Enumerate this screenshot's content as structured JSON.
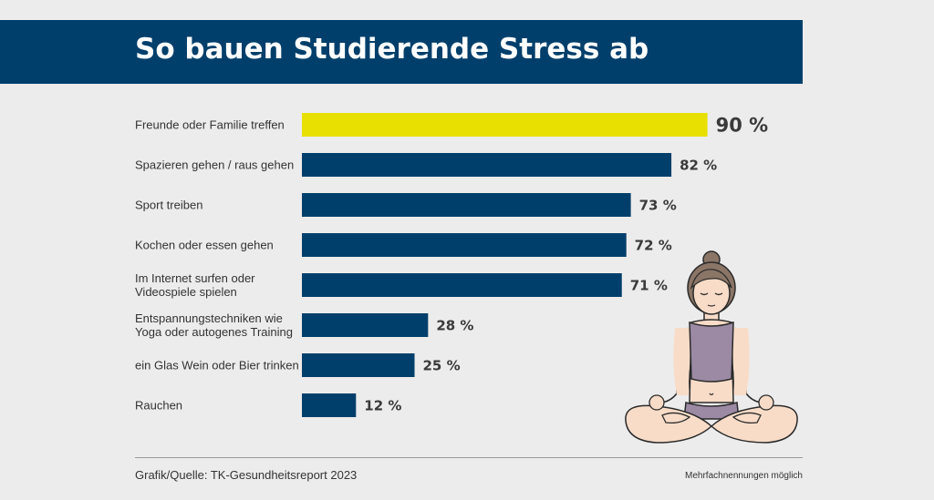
{
  "header": {
    "title": "So bauen Studierende Stress ab"
  },
  "chart_data": {
    "type": "bar",
    "orientation": "horizontal",
    "title": "So bauen Studierende Stress ab",
    "categories": [
      [
        "Freunde oder Familie treffen"
      ],
      [
        "Spazieren gehen / raus gehen"
      ],
      [
        "Sport treiben"
      ],
      [
        "Kochen oder essen gehen"
      ],
      [
        "Im Internet surfen oder",
        "Videospiele spielen"
      ],
      [
        "Entspannungstechniken wie",
        "Yoga oder autogenes Training"
      ],
      [
        "ein Glas Wein oder Bier trinken"
      ],
      [
        "Rauchen"
      ]
    ],
    "values": [
      90,
      82,
      73,
      72,
      71,
      28,
      25,
      12
    ],
    "value_labels": [
      "90 %",
      "82 %",
      "73 %",
      "72 %",
      "71 %",
      "28 %",
      "25 %",
      "12 %"
    ],
    "unit": "%",
    "xlim": [
      0,
      100
    ],
    "highlight_index": 0,
    "colors": {
      "bar": "#003f6b",
      "highlight": "#e8e000"
    }
  },
  "footer": {
    "source": "Grafik/Quelle: TK-Gesundheitsreport 2023",
    "note": "Mehrfachnennungen möglich"
  },
  "illustration": {
    "icon": "meditating-woman-icon"
  }
}
